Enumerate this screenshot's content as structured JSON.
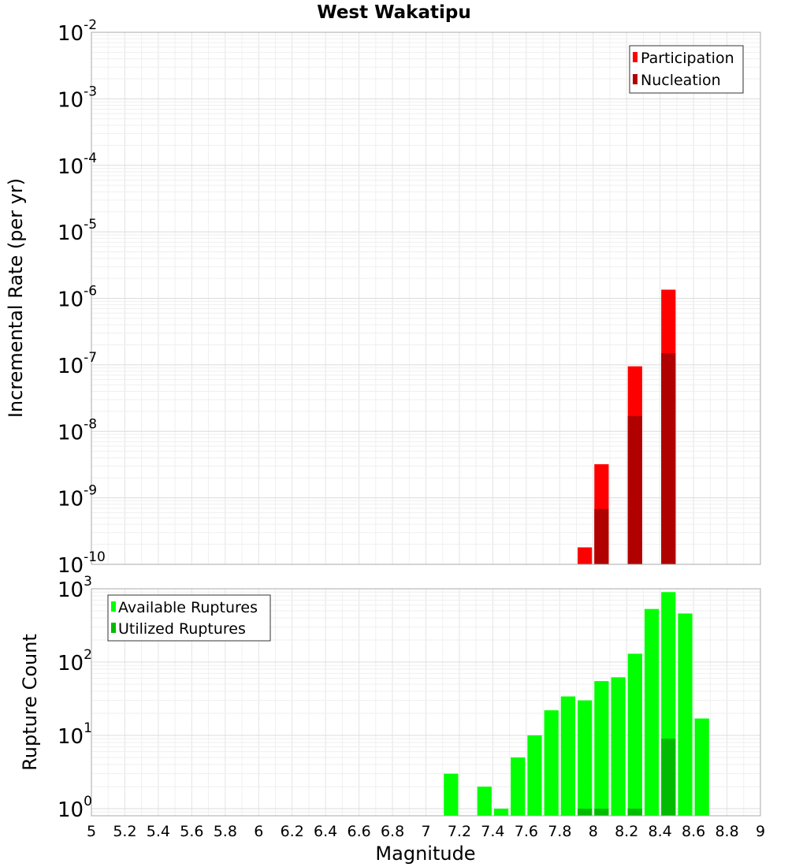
{
  "chart_data": [
    {
      "type": "bar",
      "title": "West Wakatipu",
      "ylabel": "Incremental Rate (per yr)",
      "yscale": "log",
      "ylim": [
        1e-10,
        0.01
      ],
      "ytick_labels": [
        {
          "base": "10",
          "exp": "-2"
        },
        {
          "base": "10",
          "exp": "-3"
        },
        {
          "base": "10",
          "exp": "-4"
        },
        {
          "base": "10",
          "exp": "-5"
        },
        {
          "base": "10",
          "exp": "-6"
        },
        {
          "base": "10",
          "exp": "-7"
        },
        {
          "base": "10",
          "exp": "-8"
        },
        {
          "base": "10",
          "exp": "-9"
        },
        {
          "base": "10",
          "exp": "-10"
        }
      ],
      "bin_width": 0.1,
      "series": [
        {
          "name": "Participation",
          "color": "#ff0000",
          "x": [
            7.95,
            8.05,
            8.25,
            8.45
          ],
          "values": [
            1.8e-10,
            3.2e-09,
            9.5e-08,
            1.35e-06
          ]
        },
        {
          "name": "Nucleation",
          "color": "#b00000",
          "x": [
            8.05,
            8.25,
            8.45
          ],
          "values": [
            6.8e-10,
            1.7e-08,
            1.5e-07
          ]
        }
      ],
      "legend": "top-right",
      "grid": true
    },
    {
      "type": "bar",
      "ylabel": "Rupture Count",
      "xlabel": "Magnitude",
      "yscale": "log",
      "ylim": [
        0.8,
        1000
      ],
      "ytick_labels": [
        {
          "base": "10",
          "exp": "3"
        },
        {
          "base": "10",
          "exp": "2"
        },
        {
          "base": "10",
          "exp": "1"
        },
        {
          "base": "10",
          "exp": "0"
        }
      ],
      "xlim": [
        5,
        9
      ],
      "xtick_labels": [
        "5",
        "5.2",
        "5.4",
        "5.6",
        "5.8",
        "6",
        "6.2",
        "6.4",
        "6.6",
        "6.8",
        "7",
        "7.2",
        "7.4",
        "7.6",
        "7.8",
        "8",
        "8.2",
        "8.4",
        "8.6",
        "8.8",
        "9"
      ],
      "bin_width": 0.1,
      "series": [
        {
          "name": "Available Ruptures",
          "color": "#00ff00",
          "x": [
            7.15,
            7.35,
            7.45,
            7.55,
            7.65,
            7.75,
            7.85,
            7.95,
            8.05,
            8.15,
            8.25,
            8.35,
            8.45,
            8.55,
            8.65
          ],
          "values": [
            3,
            2,
            1,
            5,
            10,
            22,
            34,
            30,
            55,
            62,
            130,
            530,
            900,
            460,
            17
          ]
        },
        {
          "name": "Utilized Ruptures",
          "color": "#00bb00",
          "x": [
            7.95,
            8.05,
            8.25,
            8.45
          ],
          "values": [
            1,
            1,
            1,
            9
          ]
        }
      ],
      "legend": "top-left",
      "grid": true
    }
  ]
}
